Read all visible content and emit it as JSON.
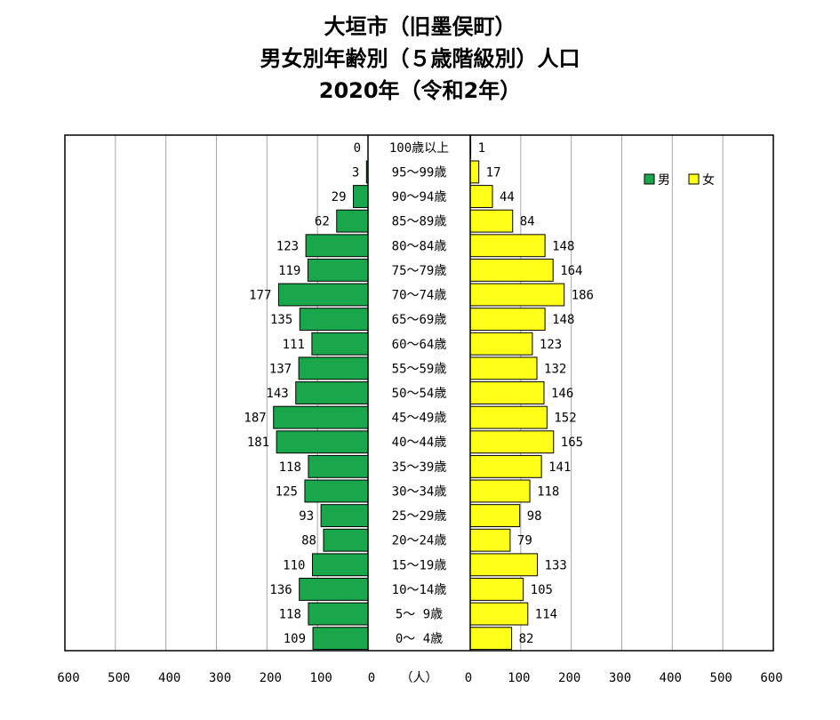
{
  "title": {
    "line1": "大垣市（旧墨俣町）",
    "line2": "男女別年齢別（５歳階級別）人口",
    "line3": "2020年（令和2年）"
  },
  "chart_data": {
    "type": "bar",
    "orientation": "horizontal-pyramid",
    "categories": [
      "100歳以上",
      "95～99歳",
      "90～94歳",
      "85～89歳",
      "80～84歳",
      "75～79歳",
      "70～74歳",
      "65～69歳",
      "60～64歳",
      "55～59歳",
      "50～54歳",
      "45～49歳",
      "40～44歳",
      "35～39歳",
      "30～34歳",
      "25～29歳",
      "20～24歳",
      "15～19歳",
      "10～14歳",
      "5～ 9歳",
      "0～ 4歳"
    ],
    "series": [
      {
        "name": "男",
        "side": "left",
        "color": "#1aa64a",
        "values": [
          0,
          3,
          29,
          62,
          123,
          119,
          177,
          135,
          111,
          137,
          143,
          187,
          181,
          118,
          125,
          93,
          88,
          110,
          136,
          118,
          109
        ]
      },
      {
        "name": "女",
        "side": "right",
        "color": "#ffff1a",
        "values": [
          1,
          17,
          44,
          84,
          148,
          164,
          186,
          148,
          123,
          132,
          146,
          152,
          165,
          141,
          118,
          98,
          79,
          133,
          105,
          114,
          82
        ]
      }
    ],
    "xlim": [
      0,
      600
    ],
    "x_ticks": [
      0,
      100,
      200,
      300,
      400,
      500,
      600
    ],
    "unit_label": "（人）",
    "grid": "vertical",
    "legend": "top-right"
  }
}
